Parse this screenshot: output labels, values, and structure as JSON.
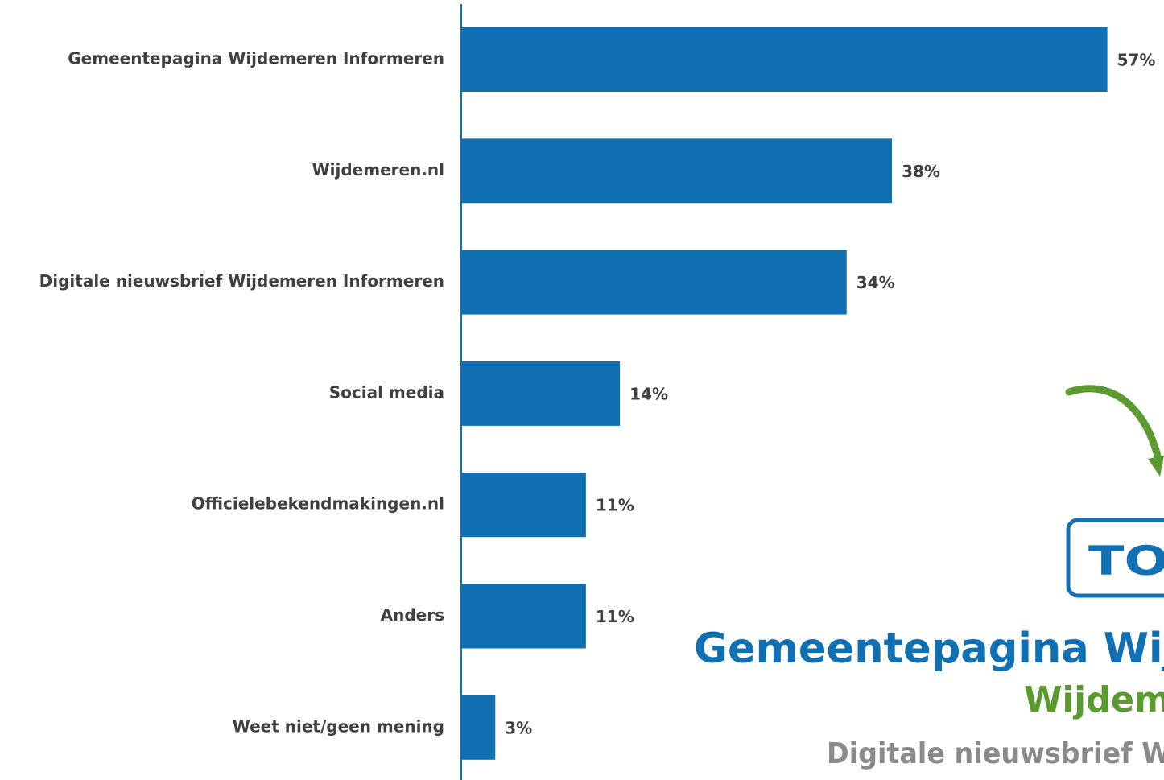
{
  "chart_data": {
    "type": "bar",
    "orientation": "horizontal",
    "categories": [
      "Gemeentepagina Wijdemeren Informeren",
      "Wijdemeren.nl",
      "Digitale nieuwsbrief Wijdemeren Informeren",
      "Social media",
      "Officielebekendmakingen.nl",
      "Anders",
      "Weet niet/geen mening"
    ],
    "values": [
      57,
      38,
      34,
      14,
      11,
      11,
      3
    ],
    "value_labels": [
      "57%",
      "38%",
      "34%",
      "14%",
      "11%",
      "11%",
      "3%"
    ],
    "color": "#1170b4",
    "xlim": [
      0,
      62
    ]
  },
  "overlay": {
    "badge": "TO",
    "line1": "Gemeentepagina Wij",
    "line2": "Wijdem",
    "line3": "Digitale nieuwsbrief W"
  }
}
